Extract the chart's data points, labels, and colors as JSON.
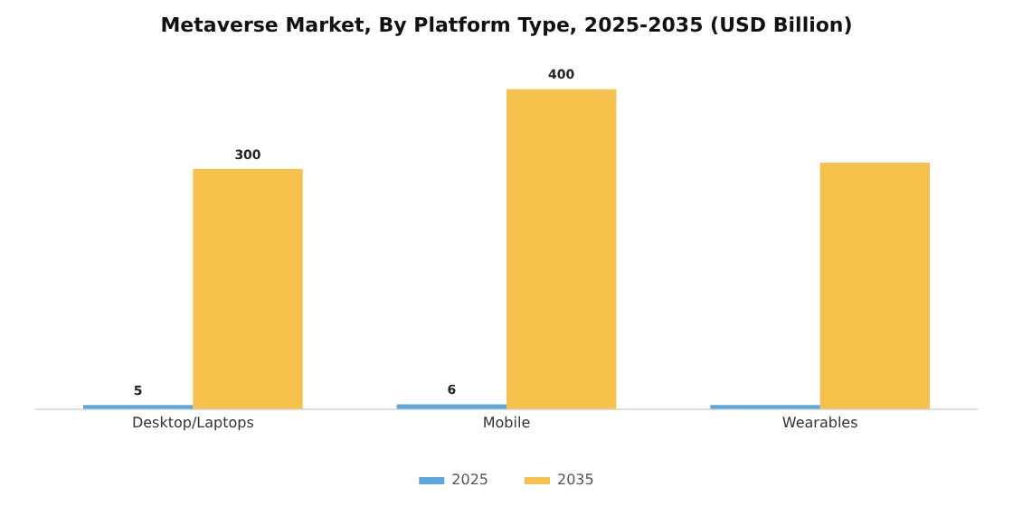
{
  "chart_data": {
    "type": "bar",
    "title": "Metaverse Market, By Platform Type, 2025-2035 (USD Billion)",
    "categories": [
      "Desktop/Laptops",
      "Mobile",
      "Wearables"
    ],
    "series": [
      {
        "name": "2025",
        "color": "#5ba8dc",
        "values": [
          5,
          6,
          5
        ],
        "value_labels": [
          "5",
          "6",
          null
        ]
      },
      {
        "name": "2035",
        "color": "#f6c14b",
        "values": [
          300,
          400,
          308
        ],
        "value_labels": [
          "300",
          "400",
          null
        ]
      }
    ],
    "legend": "bottom",
    "grid": false
  }
}
